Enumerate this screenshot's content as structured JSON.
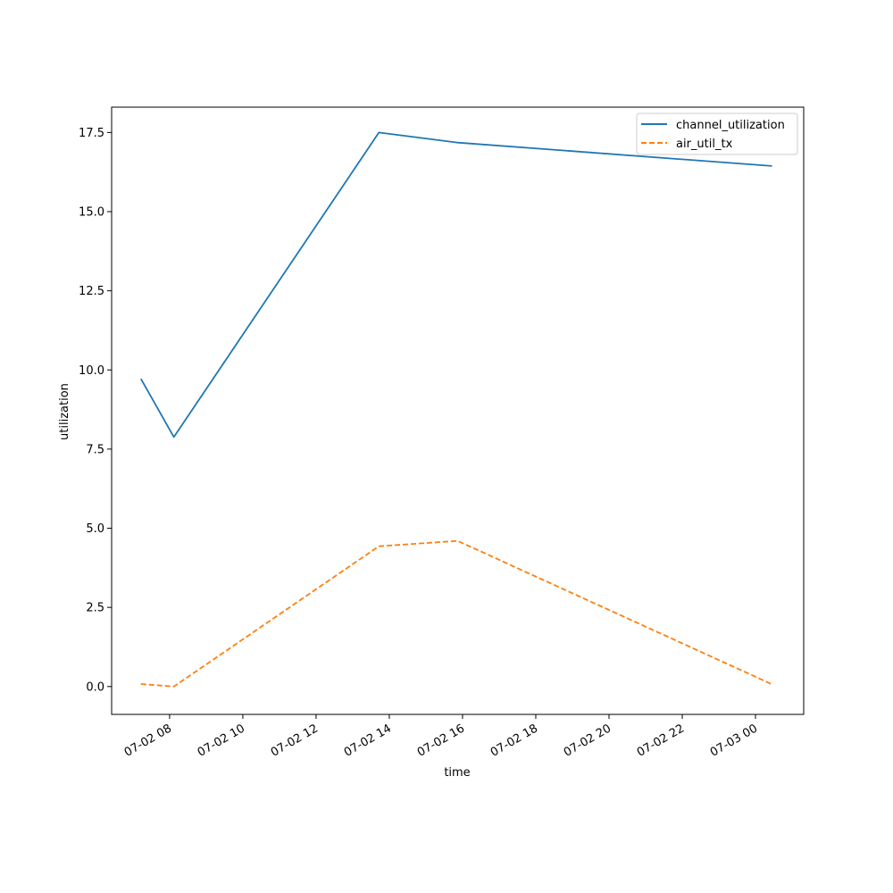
{
  "chart_data": {
    "type": "line",
    "xlabel": "time",
    "ylabel": "utilization",
    "x": [
      "2024-07-02 07:13",
      "2024-07-02 08:07",
      "2024-07-02 13:43",
      "2024-07-02 15:52",
      "2024-07-03 00:27"
    ],
    "x_ticks": [
      "07-02 08",
      "07-02 10",
      "07-02 12",
      "07-02 14",
      "07-02 16",
      "07-02 18",
      "07-02 20",
      "07-02 22",
      "07-03 00"
    ],
    "y_ticks": [
      "0.0",
      "2.5",
      "5.0",
      "7.5",
      "10.0",
      "12.5",
      "15.0",
      "17.5"
    ],
    "ylim": [
      -0.88,
      18.3
    ],
    "xlim": [
      "2024-07-02 06:25",
      "2024-07-03 01:19"
    ],
    "grid": false,
    "legend_position": "top-right",
    "series": [
      {
        "name": "channel_utilization",
        "values": [
          9.72,
          7.88,
          17.5,
          17.18,
          16.44
        ],
        "color": "#1f77b4",
        "style": "solid"
      },
      {
        "name": "air_util_tx",
        "values": [
          0.08,
          0.0,
          4.43,
          4.6,
          0.07
        ],
        "color": "#ff7f0e",
        "style": "dashed"
      }
    ]
  }
}
